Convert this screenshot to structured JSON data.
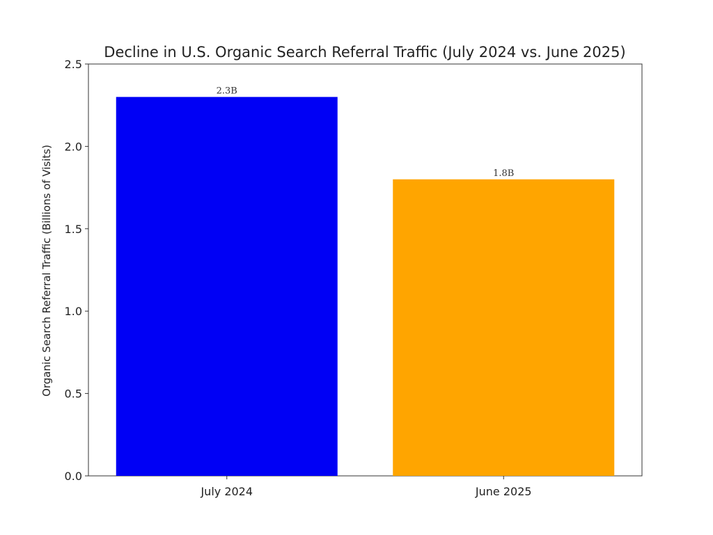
{
  "chart_data": {
    "type": "bar",
    "title": "Decline in U.S. Organic Search Referral Traffic (July 2024 vs. June 2025)",
    "xlabel": "",
    "ylabel": "Organic Search Referral Traffic (Billions of Visits)",
    "categories": [
      "July 2024",
      "June 2025"
    ],
    "values": [
      2.3,
      1.8
    ],
    "data_labels": [
      "2.3B",
      "1.8B"
    ],
    "colors": [
      "#0000f5",
      "#ffa500"
    ],
    "ylim": [
      0,
      2.5
    ],
    "yticks": [
      "0.0",
      "0.5",
      "1.0",
      "1.5",
      "2.0",
      "2.5"
    ],
    "ytick_values": [
      0,
      0.5,
      1.0,
      1.5,
      2.0,
      2.5
    ],
    "grid": false,
    "legend": "none"
  }
}
